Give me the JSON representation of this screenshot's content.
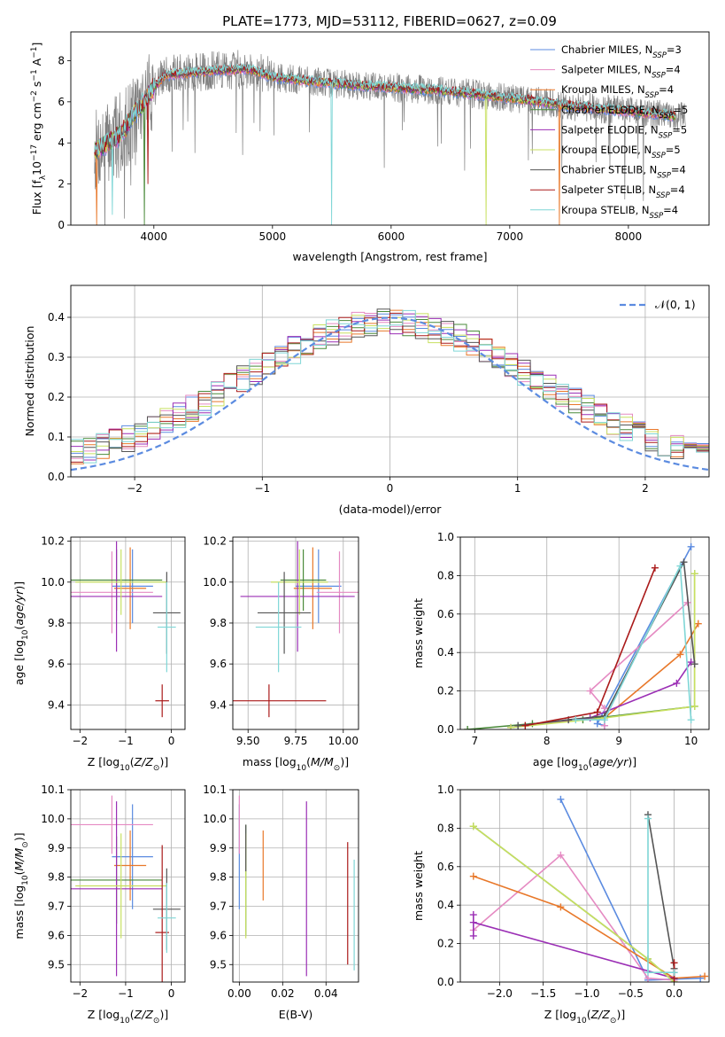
{
  "figure_title": "PLATE=1773, MJD=53112, FIBERID=0627, z=0.09",
  "colors": {
    "Chabrier MILES": "#5b8be0",
    "Salpeter MILES": "#e58ac2",
    "Kroupa MILES": "#e8782a",
    "Chabrier ELODIE": "#4a8a3a",
    "Salpeter ELODIE": "#9b2fb5",
    "Kroupa ELODIE": "#c8e060",
    "Chabrier STELIB": "#555555",
    "Salpeter STELIB": "#aa1a1a",
    "Kroupa STELIB": "#7fd6d6",
    "gaussian": "#5b8be0"
  },
  "chart_data": [
    {
      "type": "line",
      "panel": "spectrum",
      "xlabel": "wavelength [Angstrom, rest frame]",
      "ylabel": "Flux [f_λ 10^-17 erg cm^-2 s^-1 A^-1]",
      "xlim": [
        3300,
        8680
      ],
      "ylim": [
        0,
        9.4
      ],
      "xticks": [
        4000,
        5000,
        6000,
        7000,
        8000
      ],
      "yticks": [
        0,
        2,
        4,
        6,
        8
      ],
      "legend_position": "top-right",
      "series": [
        {
          "name": "Chabrier MILES, N_SSP=3",
          "legend_main": "Chabrier MILES, N",
          "legend_sub": "SSP",
          "legend_tail": "=3"
        },
        {
          "name": "Salpeter MILES, N_SSP=4",
          "legend_main": "Salpeter MILES, N",
          "legend_sub": "SSP",
          "legend_tail": "=4"
        },
        {
          "name": "Kroupa MILES, N_SSP=4",
          "legend_main": "Kroupa MILES, N",
          "legend_sub": "SSP",
          "legend_tail": "=4"
        },
        {
          "name": "Chabrier ELODIE, N_SSP=5",
          "legend_main": "Chabrier ELODIE, N",
          "legend_sub": "SSP",
          "legend_tail": "=5"
        },
        {
          "name": "Salpeter ELODIE, N_SSP=5",
          "legend_main": "Salpeter ELODIE, N",
          "legend_sub": "SSP",
          "legend_tail": "=5"
        },
        {
          "name": "Kroupa ELODIE, N_SSP=5",
          "legend_main": "Kroupa ELODIE, N",
          "legend_sub": "SSP",
          "legend_tail": "=5"
        },
        {
          "name": "Chabrier STELIB, N_SSP=4",
          "legend_main": "Chabrier STELIB, N",
          "legend_sub": "SSP",
          "legend_tail": "=4"
        },
        {
          "name": "Salpeter STELIB, N_SSP=4",
          "legend_main": "Salpeter STELIB, N",
          "legend_sub": "SSP",
          "legend_tail": "=4"
        },
        {
          "name": "Kroupa STELIB, N_SSP=4",
          "legend_main": "Kroupa STELIB, N",
          "legend_sub": "SSP",
          "legend_tail": "=4"
        }
      ],
      "continuum_points": [
        [
          3500,
          3.6
        ],
        [
          3700,
          4.3
        ],
        [
          3900,
          5.9
        ],
        [
          4000,
          6.7
        ],
        [
          4100,
          7.3
        ],
        [
          4300,
          7.4
        ],
        [
          4500,
          7.5
        ],
        [
          4800,
          7.6
        ],
        [
          5000,
          7.2
        ],
        [
          5500,
          6.9
        ],
        [
          6000,
          6.7
        ],
        [
          6500,
          6.5
        ],
        [
          7000,
          6.2
        ],
        [
          7500,
          5.8
        ],
        [
          8000,
          5.55
        ],
        [
          8400,
          5.3
        ]
      ],
      "model_range": [
        3500,
        8400
      ],
      "data_range": [
        3500,
        8480
      ]
    },
    {
      "type": "histogram",
      "panel": "residuals",
      "xlabel": "(data-model)/error",
      "ylabel": "Normed distribution",
      "xlim": [
        -2.5,
        2.5
      ],
      "ylim": [
        0,
        0.48
      ],
      "xticks": [
        -2,
        -1,
        0,
        1,
        2
      ],
      "yticks": [
        0.0,
        0.1,
        0.2,
        0.3,
        0.4
      ],
      "bin_width": 0.1,
      "reference_curve": "N(0,1)",
      "legend_label": "𝒩(0, 1)",
      "legend_position": "top-right",
      "grid": true
    },
    {
      "type": "errorbar",
      "panel": "age_vs_Z",
      "xlabel": "Z [log10(Z/Z⊙)]",
      "ylabel": "age [log10(age/yr)]",
      "xlim": [
        -2.2,
        0.3
      ],
      "ylim": [
        9.28,
        10.22
      ],
      "xticks": [
        -2,
        -1,
        0
      ],
      "yticks": [
        9.4,
        9.6,
        9.8,
        10.0,
        10.2
      ],
      "grid": true,
      "points": [
        {
          "model": "Chabrier MILES",
          "x": -0.85,
          "xerr": 0.45,
          "y": 9.98,
          "yerr": 0.18
        },
        {
          "model": "Salpeter MILES",
          "x": -1.3,
          "xerr": 0.9,
          "y": 9.95,
          "yerr": 0.2
        },
        {
          "model": "Kroupa MILES",
          "x": -0.9,
          "xerr": 0.35,
          "y": 9.97,
          "yerr": 0.2
        },
        {
          "model": "Chabrier ELODIE",
          "x": -1.2,
          "xerr": 1.0,
          "y": 10.01,
          "yerr": 0.15
        },
        {
          "model": "Salpeter ELODIE",
          "x": -1.2,
          "xerr": 1.0,
          "y": 9.93,
          "yerr": 0.27
        },
        {
          "model": "Kroupa ELODIE",
          "x": -1.1,
          "xerr": 1.0,
          "y": 10.0,
          "yerr": 0.16
        },
        {
          "model": "Chabrier STELIB",
          "x": -0.1,
          "xerr": 0.3,
          "y": 9.85,
          "yerr": 0.2
        },
        {
          "model": "Salpeter STELIB",
          "x": -0.2,
          "xerr": 0.15,
          "y": 9.42,
          "yerr": 0.08
        },
        {
          "model": "Kroupa STELIB",
          "x": -0.1,
          "xerr": 0.2,
          "y": 9.78,
          "yerr": 0.22
        }
      ]
    },
    {
      "type": "errorbar",
      "panel": "age_vs_mass",
      "xlabel": "mass [log10(M/M⊙)]",
      "ylabel": "",
      "xlim": [
        9.42,
        10.08
      ],
      "ylim": [
        9.28,
        10.22
      ],
      "xticks": [
        9.5,
        9.75,
        10.0
      ],
      "yticks": [
        9.4,
        9.6,
        9.8,
        10.0,
        10.2
      ],
      "grid": true,
      "points": [
        {
          "model": "Chabrier MILES",
          "x": 9.87,
          "xerr": 0.12,
          "y": 9.98,
          "yerr": 0.18
        },
        {
          "model": "Salpeter MILES",
          "x": 9.98,
          "xerr": 0.12,
          "y": 9.95,
          "yerr": 0.2
        },
        {
          "model": "Kroupa MILES",
          "x": 9.84,
          "xerr": 0.1,
          "y": 9.97,
          "yerr": 0.2
        },
        {
          "model": "Chabrier ELODIE",
          "x": 9.79,
          "xerr": 0.12,
          "y": 10.01,
          "yerr": 0.15
        },
        {
          "model": "Salpeter ELODIE",
          "x": 9.76,
          "xerr": 0.3,
          "y": 9.93,
          "yerr": 0.27
        },
        {
          "model": "Kroupa ELODIE",
          "x": 9.77,
          "xerr": 0.15,
          "y": 10.0,
          "yerr": 0.16
        },
        {
          "model": "Chabrier STELIB",
          "x": 9.69,
          "xerr": 0.14,
          "y": 9.85,
          "yerr": 0.2
        },
        {
          "model": "Salpeter STELIB",
          "x": 9.61,
          "xerr": 0.3,
          "y": 9.42,
          "yerr": 0.08
        },
        {
          "model": "Kroupa STELIB",
          "x": 9.66,
          "xerr": 0.12,
          "y": 9.78,
          "yerr": 0.22
        }
      ]
    },
    {
      "type": "line",
      "panel": "weight_vs_age",
      "xlabel": "age [log10(age/yr)]",
      "ylabel": "mass weight",
      "xlim": [
        6.8,
        10.25
      ],
      "ylim": [
        0,
        1.0
      ],
      "xticks": [
        7,
        8,
        9,
        10
      ],
      "yticks": [
        0.0,
        0.2,
        0.4,
        0.6,
        0.8,
        1.0
      ],
      "grid": true,
      "series": [
        {
          "model": "Chabrier MILES",
          "points": [
            [
              8.8,
              0.02
            ],
            [
              8.7,
              0.03
            ],
            [
              10.0,
              0.95
            ]
          ]
        },
        {
          "model": "Salpeter MILES",
          "points": [
            [
              8.8,
              0.02
            ],
            [
              8.8,
              0.11
            ],
            [
              8.6,
              0.2
            ],
            [
              9.95,
              0.66
            ]
          ]
        },
        {
          "model": "Kroupa MILES",
          "points": [
            [
              8.8,
              0.06
            ],
            [
              9.85,
              0.39
            ],
            [
              10.1,
              0.55
            ]
          ]
        },
        {
          "model": "Chabrier ELODIE",
          "points": [
            [
              6.9,
              0.0
            ],
            [
              7.8,
              0.03
            ],
            [
              8.5,
              0.05
            ],
            [
              10.05,
              0.12
            ],
            [
              10.05,
              0.81
            ]
          ]
        },
        {
          "model": "Salpeter ELODIE",
          "points": [
            [
              7.5,
              0.01
            ],
            [
              8.6,
              0.06
            ],
            [
              9.8,
              0.24
            ],
            [
              10.0,
              0.35
            ]
          ]
        },
        {
          "model": "Kroupa ELODIE",
          "points": [
            [
              7.5,
              0.01
            ],
            [
              8.8,
              0.06
            ],
            [
              10.05,
              0.12
            ],
            [
              10.05,
              0.81
            ]
          ]
        },
        {
          "model": "Chabrier STELIB",
          "points": [
            [
              7.6,
              0.02
            ],
            [
              8.3,
              0.05
            ],
            [
              8.8,
              0.07
            ],
            [
              9.9,
              0.87
            ],
            [
              10.05,
              0.34
            ]
          ]
        },
        {
          "model": "Salpeter STELIB",
          "points": [
            [
              7.7,
              0.02
            ],
            [
              8.7,
              0.09
            ],
            [
              9.5,
              0.84
            ]
          ]
        },
        {
          "model": "Kroupa STELIB",
          "points": [
            [
              8.4,
              0.05
            ],
            [
              8.8,
              0.05
            ],
            [
              9.85,
              0.85
            ],
            [
              10.0,
              0.05
            ]
          ]
        }
      ]
    },
    {
      "type": "errorbar",
      "panel": "mass_vs_Z",
      "xlabel": "Z [log10(Z/Z⊙)]",
      "ylabel": "mass [log10(M/M⊙)]",
      "xlim": [
        -2.2,
        0.3
      ],
      "ylim": [
        9.44,
        10.1
      ],
      "xticks": [
        -2,
        -1,
        0
      ],
      "yticks": [
        9.5,
        9.6,
        9.7,
        9.8,
        9.9,
        10.0,
        10.1
      ],
      "grid": true,
      "points": [
        {
          "model": "Chabrier MILES",
          "x": -0.85,
          "xerr": 0.45,
          "y": 9.87,
          "yerr": 0.18
        },
        {
          "model": "Salpeter MILES",
          "x": -1.3,
          "xerr": 0.9,
          "y": 9.98,
          "yerr": 0.1
        },
        {
          "model": "Kroupa MILES",
          "x": -0.9,
          "xerr": 0.35,
          "y": 9.84,
          "yerr": 0.12
        },
        {
          "model": "Chabrier ELODIE",
          "x": -1.2,
          "xerr": 1.0,
          "y": 9.79,
          "yerr": 0.15
        },
        {
          "model": "Salpeter ELODIE",
          "x": -1.2,
          "xerr": 1.0,
          "y": 9.76,
          "yerr": 0.3
        },
        {
          "model": "Kroupa ELODIE",
          "x": -1.1,
          "xerr": 1.0,
          "y": 9.77,
          "yerr": 0.18
        },
        {
          "model": "Chabrier STELIB",
          "x": -0.1,
          "xerr": 0.3,
          "y": 9.69,
          "yerr": 0.14
        },
        {
          "model": "Salpeter STELIB",
          "x": -0.2,
          "xerr": 0.15,
          "y": 9.61,
          "yerr": 0.3
        },
        {
          "model": "Kroupa STELIB",
          "x": -0.1,
          "xerr": 0.2,
          "y": 9.66,
          "yerr": 0.12
        }
      ]
    },
    {
      "type": "errorbar",
      "panel": "mass_vs_EBV",
      "xlabel": "E(B-V)",
      "ylabel": "",
      "xlim": [
        -0.003,
        0.055
      ],
      "ylim": [
        9.44,
        10.1
      ],
      "xticks": [
        0.0,
        0.02,
        0.04
      ],
      "xtick_labels": [
        "0.00",
        "0.02",
        "0.04"
      ],
      "yticks": [
        9.5,
        9.6,
        9.7,
        9.8,
        9.9,
        10.0,
        10.1
      ],
      "grid": true,
      "points": [
        {
          "model": "Chabrier MILES",
          "x": 0.0,
          "y": 9.87,
          "yerr": 0.18
        },
        {
          "model": "Salpeter MILES",
          "x": 0.0,
          "y": 9.98,
          "yerr": 0.1
        },
        {
          "model": "Kroupa MILES",
          "x": 0.011,
          "y": 9.84,
          "yerr": 0.12
        },
        {
          "model": "Chabrier ELODIE",
          "x": 0.003,
          "y": 9.79,
          "yerr": 0.19
        },
        {
          "model": "Salpeter ELODIE",
          "x": 0.031,
          "y": 9.76,
          "yerr": 0.3
        },
        {
          "model": "Kroupa ELODIE",
          "x": 0.003,
          "y": 9.77,
          "yerr": 0.18
        },
        {
          "model": "Chabrier STELIB",
          "x": 0.003,
          "y": 9.9,
          "yerr": 0.08
        },
        {
          "model": "Salpeter STELIB",
          "x": 0.05,
          "y": 9.71,
          "yerr": 0.21
        },
        {
          "model": "Kroupa STELIB",
          "x": 0.053,
          "y": 9.67,
          "yerr": 0.19
        }
      ]
    },
    {
      "type": "line",
      "panel": "weight_vs_Z",
      "xlabel": "Z [log10(Z/Z⊙)]",
      "ylabel": "mass weight",
      "xlim": [
        -2.45,
        0.4
      ],
      "ylim": [
        0,
        1.0
      ],
      "xticks": [
        -2.0,
        -1.5,
        -1.0,
        -0.5,
        0.0
      ],
      "xtick_labels": [
        "−2.0",
        "−1.5",
        "−1.0",
        "−0.5",
        "0.0"
      ],
      "yticks": [
        0.0,
        0.2,
        0.4,
        0.6,
        0.8,
        1.0
      ],
      "grid": true,
      "series": [
        {
          "model": "Chabrier MILES",
          "points": [
            [
              -1.3,
              0.95
            ],
            [
              -0.3,
              0.01
            ],
            [
              0.3,
              0.02
            ]
          ]
        },
        {
          "model": "Salpeter MILES",
          "points": [
            [
              -2.3,
              0.27
            ],
            [
              -1.3,
              0.66
            ],
            [
              -0.3,
              0.02
            ],
            [
              0.0,
              0.01
            ]
          ]
        },
        {
          "model": "Kroupa MILES",
          "points": [
            [
              -2.3,
              0.55
            ],
            [
              -1.3,
              0.39
            ],
            [
              0.0,
              0.02
            ],
            [
              0.35,
              0.03
            ]
          ]
        },
        {
          "model": "Chabrier ELODIE",
          "points": [
            [
              -2.3,
              0.81
            ],
            [
              -0.3,
              0.12
            ],
            [
              0.0,
              0.0
            ]
          ]
        },
        {
          "model": "Salpeter ELODIE",
          "points": [
            [
              -2.3,
              0.35
            ],
            [
              -2.3,
              0.24
            ],
            [
              -2.3,
              0.31
            ],
            [
              0.0,
              0.02
            ]
          ]
        },
        {
          "model": "Kroupa ELODIE",
          "points": [
            [
              -2.3,
              0.81
            ],
            [
              -0.3,
              0.12
            ],
            [
              0.0,
              0.0
            ]
          ]
        },
        {
          "model": "Chabrier STELIB",
          "points": [
            [
              -0.3,
              0.87
            ],
            [
              0.0,
              0.07
            ],
            [
              0.0,
              0.05
            ]
          ]
        },
        {
          "model": "Salpeter STELIB",
          "points": [
            [
              0.0,
              0.1
            ],
            [
              0.0,
              0.02
            ]
          ]
        },
        {
          "model": "Kroupa STELIB",
          "points": [
            [
              -0.3,
              0.85
            ],
            [
              -0.3,
              0.05
            ],
            [
              0.0,
              0.05
            ]
          ]
        }
      ]
    }
  ]
}
